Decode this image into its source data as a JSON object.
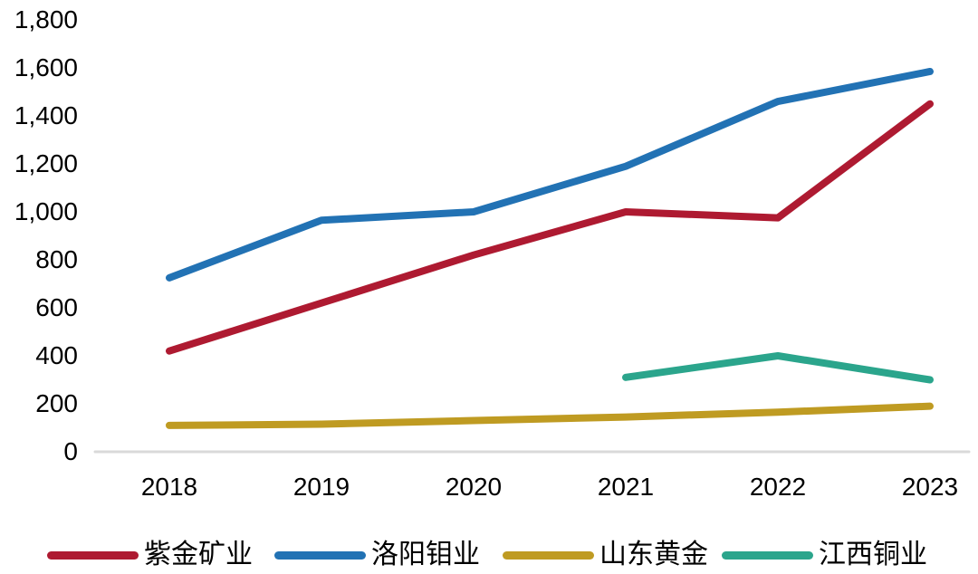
{
  "chart_data": {
    "type": "line",
    "categories": [
      "2018",
      "2019",
      "2020",
      "2021",
      "2022",
      "2023"
    ],
    "series": [
      {
        "name": "紫金矿业",
        "color": "#AE1A31",
        "values": [
          420,
          620,
          820,
          1000,
          975,
          1450
        ]
      },
      {
        "name": "洛阳钼业",
        "color": "#2272B4",
        "values": [
          725,
          965,
          1000,
          1190,
          1460,
          1585
        ]
      },
      {
        "name": "山东黄金",
        "color": "#BF9B22",
        "values": [
          110,
          115,
          130,
          145,
          165,
          190
        ]
      },
      {
        "name": "江西铜业",
        "color": "#2BA58C",
        "values": [
          null,
          null,
          null,
          310,
          400,
          300
        ]
      }
    ],
    "ylim": [
      0,
      1800
    ],
    "ytick_labels": [
      "0",
      "200",
      "400",
      "600",
      "800",
      "1,000",
      "1,200",
      "1,400",
      "1,600",
      "1,800"
    ],
    "grid": false,
    "legend_position": "bottom",
    "axis_color": "#D9D9D9",
    "text_color": "#000000",
    "line_width": 8
  }
}
